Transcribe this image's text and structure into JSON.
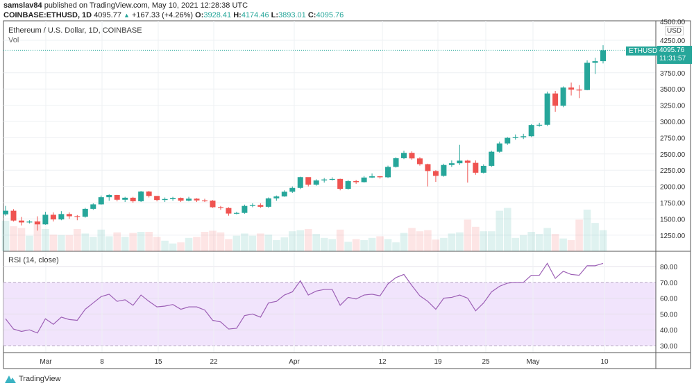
{
  "header": {
    "author": "samslav84",
    "published_text": "published on TradingView.com, May 10, 2021 12:28:38 UTC",
    "symbol": "COINBASE:ETHUSD, 1D",
    "last": "4095.77",
    "change": "+167.33 (+4.26%)",
    "o_label": "O:",
    "o": "3928.41",
    "h_label": "H:",
    "h": "4174.46",
    "l_label": "L:",
    "l": "3893.01",
    "c_label": "C:",
    "c": "4095.76"
  },
  "main_pane": {
    "title": "Ethereum / U.S. Dollar, 1D, COINBASE",
    "vol_label": "Vol"
  },
  "rsi_pane": {
    "title": "RSI (14, close)"
  },
  "price_axis": {
    "currency": "USD",
    "top_partial": "4500.00"
  },
  "last_price_tag": {
    "symbol": "ETHUSD",
    "price": "4095.76",
    "countdown": "11:31:57"
  },
  "brand": "TradingView",
  "colors": {
    "up": "#26a69a",
    "down": "#ef5350",
    "rsi_line": "#9c5fb5",
    "rsi_band": "#f1e4fc",
    "grid": "#eef0f3"
  },
  "chart_data": [
    {
      "type": "candlestick",
      "title": "Ethereum / U.S. Dollar, 1D, COINBASE",
      "dates_range": [
        "2021-02-24",
        "2021-05-10"
      ],
      "x_ticks": [
        "Mar",
        "8",
        "15",
        "22",
        "Apr",
        "12",
        "19",
        "25",
        "May",
        "10"
      ],
      "y_ticks": [
        "1250.00",
        "1500.00",
        "1750.00",
        "2000.00",
        "2250.00",
        "2500.00",
        "2750.00",
        "3000.00",
        "3250.00",
        "3500.00",
        "3750.00",
        "4250.00"
      ],
      "ylim": [
        1100,
        4550
      ],
      "grid": true,
      "open": [
        1570,
        1626,
        1475,
        1446,
        1459,
        1416,
        1564,
        1492,
        1575,
        1541,
        1533,
        1655,
        1724,
        1834,
        1868,
        1795,
        1826,
        1772,
        1922,
        1854,
        1791,
        1806,
        1823,
        1782,
        1812,
        1785,
        1782,
        1680,
        1668,
        1583,
        1593,
        1700,
        1714,
        1687,
        1817,
        1846,
        1919,
        1977,
        2143,
        2028,
        2093,
        2107,
        2115,
        1963,
        2081,
        2066,
        2137,
        2156,
        2141,
        2300,
        2434,
        2517,
        2431,
        2343,
        2237,
        2163,
        2330,
        2357,
        2397,
        2363,
        2211,
        2317,
        2534,
        2662,
        2748,
        2757,
        2773,
        2945,
        2949,
        3431,
        3241,
        3522,
        3490,
        3484,
        3903,
        3928.41
      ],
      "high": [
        1700,
        1650,
        1530,
        1480,
        1540,
        1610,
        1600,
        1620,
        1600,
        1560,
        1670,
        1740,
        1860,
        1880,
        1870,
        1840,
        1840,
        1930,
        1930,
        1850,
        1830,
        1840,
        1830,
        1840,
        1820,
        1810,
        1790,
        1700,
        1680,
        1610,
        1720,
        1740,
        1740,
        1830,
        1860,
        1940,
        2000,
        2150,
        2140,
        2110,
        2130,
        2140,
        2120,
        2100,
        2100,
        2160,
        2200,
        2160,
        2320,
        2450,
        2550,
        2540,
        2450,
        2350,
        2250,
        2350,
        2400,
        2640,
        2410,
        2400,
        2340,
        2550,
        2690,
        2760,
        2800,
        2810,
        2960,
        2980,
        3460,
        3470,
        3540,
        3600,
        3560,
        3940,
        3980,
        4174.46
      ],
      "low": [
        1550,
        1460,
        1400,
        1430,
        1320,
        1410,
        1460,
        1480,
        1500,
        1480,
        1520,
        1640,
        1720,
        1780,
        1770,
        1760,
        1750,
        1760,
        1830,
        1770,
        1760,
        1780,
        1760,
        1770,
        1760,
        1760,
        1670,
        1640,
        1550,
        1570,
        1580,
        1680,
        1670,
        1670,
        1780,
        1840,
        1900,
        1960,
        2000,
        2010,
        2060,
        2090,
        1940,
        1950,
        2040,
        2060,
        2130,
        2120,
        2130,
        2290,
        2420,
        2410,
        2320,
        2000,
        2070,
        2150,
        2300,
        2330,
        2060,
        2180,
        2200,
        2300,
        2520,
        2640,
        2720,
        2730,
        2760,
        2920,
        2930,
        3150,
        3220,
        3400,
        3360,
        3480,
        3730,
        3893.01
      ],
      "close": [
        1626,
        1475,
        1446,
        1459,
        1416,
        1564,
        1492,
        1575,
        1541,
        1533,
        1655,
        1724,
        1834,
        1868,
        1795,
        1826,
        1772,
        1922,
        1854,
        1791,
        1806,
        1823,
        1782,
        1812,
        1785,
        1782,
        1680,
        1668,
        1583,
        1593,
        1700,
        1714,
        1687,
        1817,
        1846,
        1919,
        1977,
        2143,
        2028,
        2093,
        2107,
        2115,
        1963,
        2081,
        2066,
        2137,
        2156,
        2141,
        2300,
        2434,
        2517,
        2431,
        2343,
        2237,
        2163,
        2330,
        2357,
        2397,
        2363,
        2211,
        2317,
        2534,
        2662,
        2748,
        2757,
        2773,
        2945,
        2949,
        3431,
        3241,
        3522,
        3490,
        3484,
        3903,
        3928,
        4095.76
      ],
      "volume_relative": [
        55,
        45,
        42,
        28,
        55,
        40,
        30,
        29,
        29,
        40,
        32,
        26,
        39,
        27,
        34,
        26,
        33,
        35,
        35,
        26,
        19,
        14,
        16,
        24,
        26,
        35,
        37,
        34,
        22,
        28,
        32,
        28,
        32,
        30,
        20,
        25,
        36,
        38,
        40,
        31,
        24,
        22,
        39,
        17,
        22,
        20,
        24,
        27,
        22,
        16,
        33,
        42,
        36,
        38,
        21,
        24,
        32,
        34,
        57,
        44,
        36,
        36,
        73,
        78,
        24,
        29,
        35,
        31,
        42,
        31,
        23,
        20,
        57,
        75,
        51,
        38
      ]
    },
    {
      "type": "line",
      "title": "RSI (14, close)",
      "y_ticks": [
        "30.00",
        "40.00",
        "50.00",
        "60.00",
        "70.00",
        "80.00"
      ],
      "band": [
        30,
        70
      ],
      "ylim": [
        26,
        88
      ],
      "values": [
        47,
        40.5,
        39,
        40,
        38,
        47,
        43.5,
        48,
        46.5,
        46,
        53,
        57,
        61,
        62.5,
        58,
        59,
        55.5,
        62,
        58,
        54.5,
        55,
        56,
        53,
        54.5,
        54.5,
        52.5,
        46,
        45,
        40.5,
        41,
        49,
        50,
        48,
        57,
        58,
        62,
        64,
        71,
        62,
        64.5,
        65.5,
        65.5,
        55.5,
        60.5,
        59.5,
        62,
        62.5,
        61.5,
        69,
        73,
        75,
        68,
        61.5,
        58,
        53,
        60,
        60.5,
        62,
        60,
        52,
        57,
        64,
        67.5,
        69.5,
        70,
        70,
        74.5,
        74.5,
        82,
        72.5,
        77,
        75,
        74.5,
        80.5,
        80.5,
        82
      ]
    }
  ]
}
